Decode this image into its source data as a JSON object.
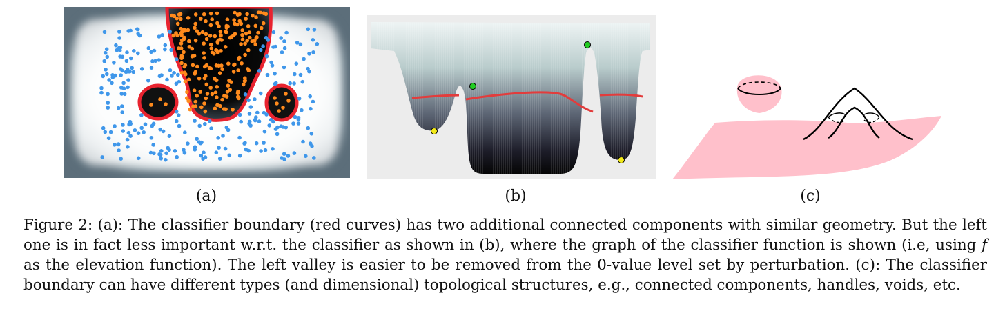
{
  "figure": {
    "panel_a": {
      "label": "(a)",
      "background_color": "#5c6e7a",
      "blue_point_color": "#3f97ea",
      "orange_point_color": "#ff8a1c",
      "boundary_color": "#e8232f"
    },
    "panel_b": {
      "label": "(b)",
      "boundary_color": "#e23c3c",
      "green_point_color": "#22cc22",
      "yellow_point_color": "#f2ea1a"
    },
    "panel_c": {
      "label": "(c)",
      "surface_color": "#ffc0cb"
    },
    "caption": {
      "part1": "Figure 2: (a): The classifier boundary (red curves) has two additional connected components with similar geometry. But the left one is in fact less important w.r.t. the classifier as shown in (b), where the graph of the classifier function is shown (i.e, using ",
      "symbol": "f",
      "part2": " as the elevation function). The left valley is easier to be removed from the 0-value level set by perturbation. (c): The classifier boundary can have different types (and dimensional) topological structures, e.g., connected components, handles, voids, etc."
    }
  }
}
